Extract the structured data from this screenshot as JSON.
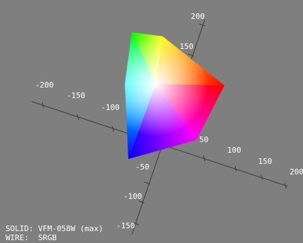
{
  "axis_labels": {
    "vertical": [
      "200",
      "150",
      "-50",
      "-100",
      "-150"
    ],
    "horizontal": [
      "-200",
      "-150",
      "-100",
      "50",
      "100",
      "150",
      "200"
    ]
  },
  "legend": {
    "solid": "SOLID: VFM-058W (max)",
    "wire": "WIRE:  SRGB"
  }
}
